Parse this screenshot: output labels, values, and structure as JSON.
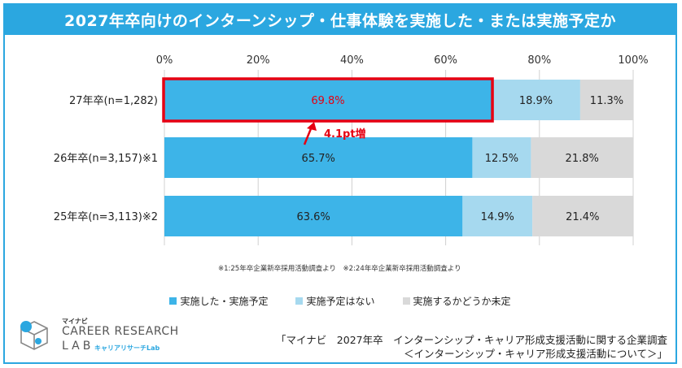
{
  "title": "2027年卒向けのインターンシップ・仕事体験を実施した・または実施予定か",
  "chart_data": {
    "type": "bar",
    "orientation": "horizontal-stacked-100",
    "categories": [
      "27年卒(n=1,282)",
      "26年卒(n=3,157)※1",
      "25年卒(n=3,113)※2"
    ],
    "series": [
      {
        "name": "実施した・実施予定",
        "values": [
          69.8,
          65.7,
          63.6
        ],
        "labels": [
          "69.8%",
          "65.7%",
          "63.6%"
        ],
        "color": "#3db4e8"
      },
      {
        "name": "実施予定はない",
        "values": [
          18.9,
          12.5,
          14.9
        ],
        "labels": [
          "18.9%",
          "12.5%",
          "14.9%"
        ],
        "color": "#a6d9ef"
      },
      {
        "name": "実施するかどうか未定",
        "values": [
          11.3,
          21.8,
          21.4
        ],
        "labels": [
          "11.3%",
          "21.8%",
          "21.4%"
        ],
        "color": "#d9d9d9"
      }
    ],
    "x_ticks": [
      "0%",
      "20%",
      "40%",
      "60%",
      "80%",
      "100%"
    ],
    "xlim": [
      0,
      100
    ],
    "annotation": {
      "text": "4.1pt増",
      "color": "#e60012"
    },
    "highlight_color": "#e60012"
  },
  "note": "※1:25年卒企業新卒採用活動調査より　※2:24年卒企業新卒採用活動調査より",
  "logo": {
    "brand_small": "マイナビ",
    "brand_main": "CAREER RESEARCH",
    "brand_lab": "LAB",
    "brand_sub": "キャリアリサーチLab"
  },
  "source": {
    "line1": "「マイナビ　2027年卒　インターンシップ・キャリア形成支援活動に関する企業調査",
    "line2": "＜インターンシップ・キャリア形成支援活動について＞」"
  }
}
